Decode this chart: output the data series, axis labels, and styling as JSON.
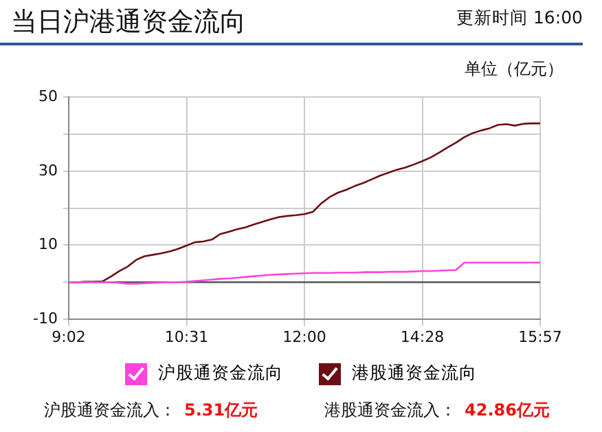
{
  "chart_data": {
    "type": "line",
    "title": "当日沪港通资金流向",
    "annotations": [
      "更新时间 16:00",
      "单位（亿元）",
      "沪股通资金流入：",
      "5.31亿元",
      "港股通资金流入：",
      "42.86亿元"
    ],
    "categories": [
      "9:02",
      null,
      null,
      null,
      null,
      null,
      null,
      null,
      null,
      null,
      null,
      null,
      null,
      null,
      "10:31",
      null,
      null,
      null,
      null,
      null,
      null,
      null,
      null,
      null,
      null,
      null,
      null,
      null,
      "12:00",
      null,
      null,
      null,
      null,
      null,
      null,
      null,
      null,
      null,
      null,
      null,
      null,
      null,
      "14:28",
      null,
      null,
      null,
      null,
      null,
      null,
      null,
      null,
      null,
      null,
      null,
      null,
      null,
      "15:57"
    ],
    "series": [
      {
        "name": "沪股通资金流向",
        "color": "#ff44dd",
        "values": [
          0,
          0,
          0,
          0,
          0,
          0,
          -0.2,
          -0.4,
          -0.4,
          -0.3,
          -0.2,
          -0.1,
          0,
          0,
          0.1,
          0.3,
          0.5,
          0.7,
          0.9,
          1.0,
          1.2,
          1.4,
          1.6,
          1.8,
          2.0,
          2.1,
          2.2,
          2.3,
          2.4,
          2.5,
          2.5,
          2.5,
          2.6,
          2.6,
          2.6,
          2.7,
          2.7,
          2.7,
          2.8,
          2.8,
          2.8,
          2.9,
          3.0,
          3.0,
          3.1,
          3.2,
          3.3,
          5.3,
          5.3,
          5.3,
          5.3,
          5.3,
          5.3,
          5.3,
          5.3,
          5.3,
          5.3
        ]
      },
      {
        "name": "港股通资金流向",
        "color": "#6b0f14",
        "values": [
          0,
          0,
          0.1,
          0.1,
          0.2,
          1.5,
          3,
          4.2,
          6,
          7,
          7.4,
          7.8,
          8.3,
          9,
          9.9,
          10.8,
          11,
          11.5,
          13,
          13.6,
          14.3,
          14.8,
          15.6,
          16.3,
          17,
          17.6,
          17.9,
          18.1,
          18.4,
          19,
          21.3,
          23,
          24.2,
          25,
          26,
          26.8,
          27.8,
          28.8,
          29.6,
          30.4,
          31,
          31.8,
          32.7,
          33.7,
          35,
          36.4,
          37.7,
          39.2,
          40.3,
          41,
          41.6,
          42.5,
          42.7,
          42.3,
          42.8,
          42.9,
          42.9
        ]
      }
    ],
    "ylim": [
      -10,
      50
    ],
    "yticks": [
      -10,
      {
        "value": 0,
        "label": null
      },
      10,
      {
        "value": 20,
        "label": null
      },
      30,
      {
        "value": 40,
        "label": null
      },
      50
    ],
    "ref_lines": [
      {
        "axis": "y",
        "value": 0,
        "color": "#555555"
      }
    ],
    "grid": true,
    "legend": "bottom",
    "marker": "none",
    "line_style": "solid"
  }
}
